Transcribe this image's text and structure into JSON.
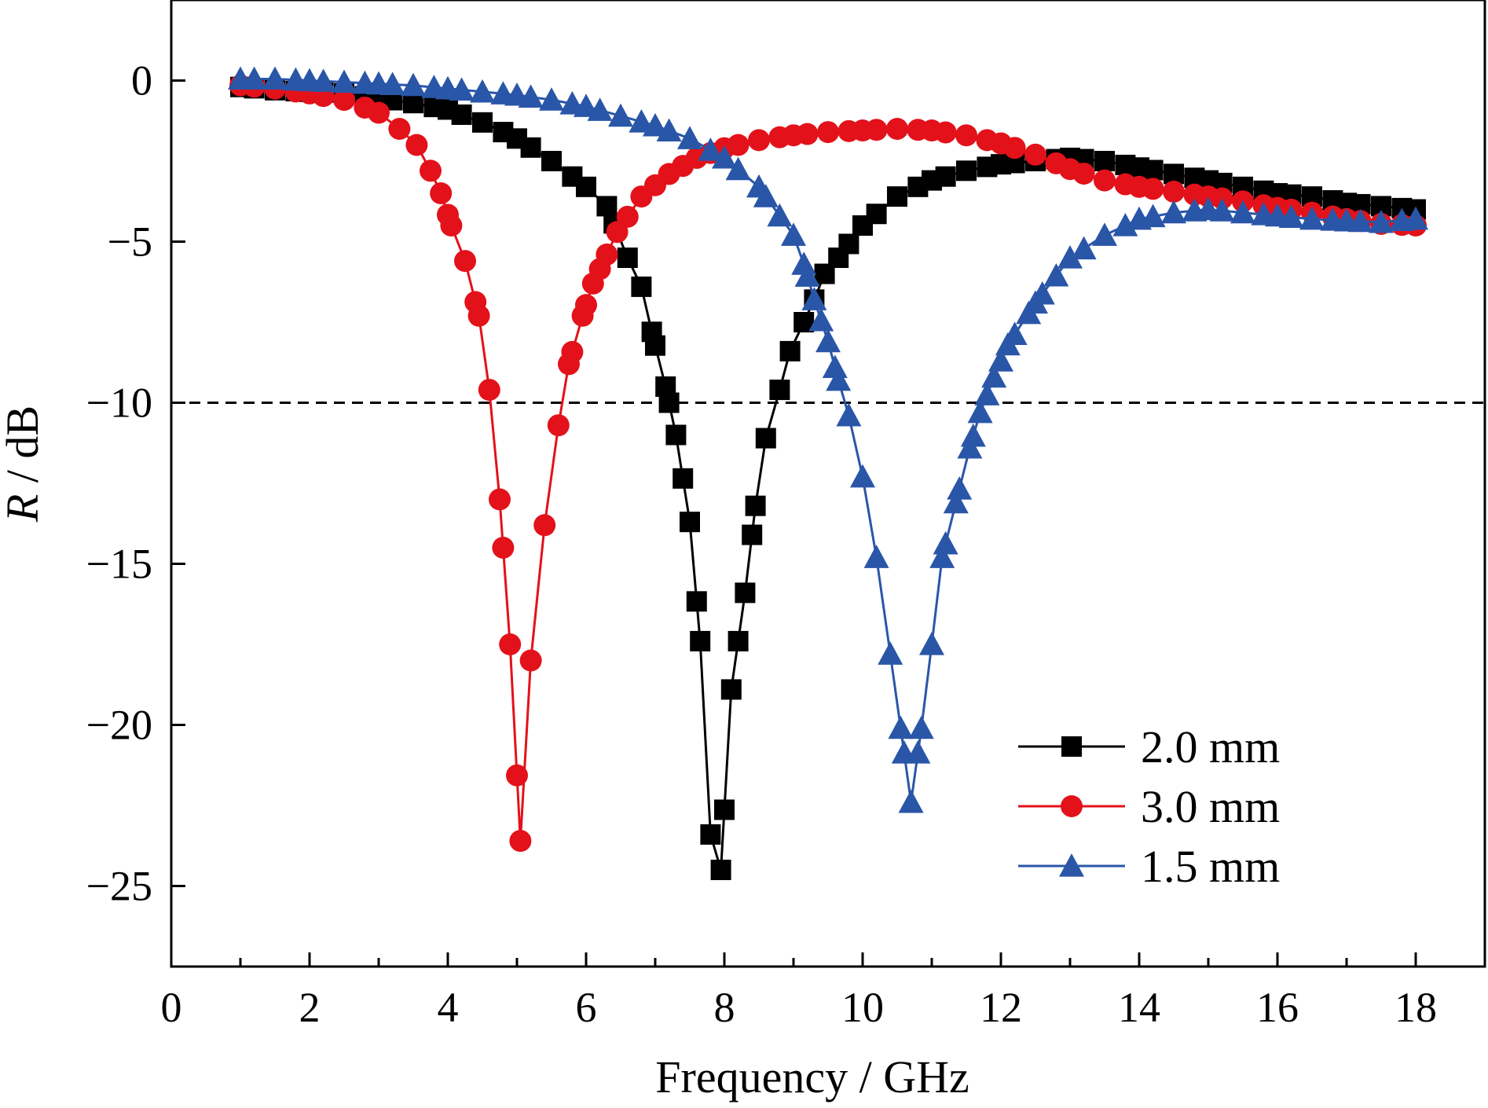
{
  "chart_data": {
    "type": "line",
    "xlabel": "Frequency / GHz",
    "ylabel_italic": "R",
    "ylabel_unit": " / dB",
    "xlim": [
      0,
      19
    ],
    "ylim": [
      -27.5,
      2.5
    ],
    "xticks": [
      0,
      2,
      4,
      6,
      8,
      10,
      12,
      14,
      16,
      18
    ],
    "xtick_labels": [
      "0",
      "2",
      "4",
      "6",
      "8",
      "10",
      "12",
      "14",
      "16",
      "18"
    ],
    "yticks": [
      0,
      -5,
      -10,
      -15,
      -20,
      -25
    ],
    "ytick_labels": [
      "0",
      "−5",
      "−10",
      "−15",
      "−20",
      "−25"
    ],
    "reference_line": {
      "y": -10,
      "style": "dashed"
    },
    "legend_position": "bottom-right",
    "series": [
      {
        "name": "2.0 mm",
        "color": "#000000",
        "marker": "square",
        "points": [
          [
            1.0,
            -0.2
          ],
          [
            1.5,
            -0.3
          ],
          [
            2.0,
            -0.35
          ],
          [
            2.5,
            -0.4
          ],
          [
            3.0,
            -0.55
          ],
          [
            3.5,
            -0.7
          ],
          [
            4.0,
            -0.9
          ],
          [
            4.5,
            -1.3
          ],
          [
            5.0,
            -1.8
          ],
          [
            5.5,
            -2.5
          ],
          [
            6.0,
            -3.3
          ],
          [
            6.3,
            -3.9
          ],
          [
            6.6,
            -5.5
          ],
          [
            6.8,
            -6.4
          ],
          [
            6.95,
            -7.8
          ],
          [
            7.15,
            -9.5
          ],
          [
            7.3,
            -11.0
          ],
          [
            7.5,
            -13.7
          ],
          [
            7.65,
            -17.4
          ],
          [
            7.8,
            -23.4
          ],
          [
            7.95,
            -24.5
          ],
          [
            8.1,
            -18.9
          ],
          [
            8.3,
            -15.9
          ],
          [
            8.45,
            -13.2
          ],
          [
            8.6,
            -11.1
          ],
          [
            8.8,
            -9.6
          ],
          [
            8.95,
            -8.4
          ],
          [
            9.15,
            -7.5
          ],
          [
            9.3,
            -6.8
          ],
          [
            9.45,
            -6.0
          ],
          [
            9.65,
            -5.5
          ],
          [
            10.0,
            -4.5
          ],
          [
            10.5,
            -3.6
          ],
          [
            11.0,
            -3.1
          ],
          [
            11.5,
            -2.8
          ],
          [
            12.0,
            -2.6
          ],
          [
            12.5,
            -2.5
          ],
          [
            13.0,
            -2.4
          ],
          [
            13.5,
            -2.5
          ],
          [
            14.0,
            -2.7
          ],
          [
            14.5,
            -2.9
          ],
          [
            15.0,
            -3.1
          ],
          [
            15.5,
            -3.3
          ],
          [
            16.0,
            -3.5
          ],
          [
            16.5,
            -3.6
          ],
          [
            17.0,
            -3.8
          ],
          [
            17.5,
            -3.9
          ],
          [
            18.0,
            -4.0
          ]
        ]
      },
      {
        "name": "3.0 mm",
        "color": "#e3111a",
        "marker": "circle",
        "points": [
          [
            1.0,
            -0.15
          ],
          [
            1.5,
            -0.25
          ],
          [
            2.0,
            -0.4
          ],
          [
            2.5,
            -0.6
          ],
          [
            3.0,
            -1.0
          ],
          [
            3.3,
            -1.5
          ],
          [
            3.55,
            -2.0
          ],
          [
            3.75,
            -2.8
          ],
          [
            3.9,
            -3.5
          ],
          [
            4.05,
            -4.5
          ],
          [
            4.25,
            -5.6
          ],
          [
            4.45,
            -7.3
          ],
          [
            4.6,
            -9.6
          ],
          [
            4.75,
            -13.0
          ],
          [
            4.9,
            -17.5
          ],
          [
            5.05,
            -23.6
          ],
          [
            5.2,
            -18.0
          ],
          [
            5.4,
            -13.8
          ],
          [
            5.6,
            -10.7
          ],
          [
            5.75,
            -8.8
          ],
          [
            5.95,
            -7.3
          ],
          [
            6.1,
            -6.3
          ],
          [
            6.3,
            -5.4
          ],
          [
            6.45,
            -4.7
          ],
          [
            6.8,
            -3.6
          ],
          [
            7.2,
            -2.9
          ],
          [
            7.6,
            -2.4
          ],
          [
            8.0,
            -2.1
          ],
          [
            8.5,
            -1.85
          ],
          [
            9.0,
            -1.7
          ],
          [
            9.5,
            -1.6
          ],
          [
            10.0,
            -1.55
          ],
          [
            10.5,
            -1.5
          ],
          [
            11.0,
            -1.55
          ],
          [
            11.5,
            -1.7
          ],
          [
            12.0,
            -1.95
          ],
          [
            12.5,
            -2.3
          ],
          [
            13.0,
            -2.75
          ],
          [
            13.5,
            -3.1
          ],
          [
            14.0,
            -3.3
          ],
          [
            14.5,
            -3.45
          ],
          [
            15.0,
            -3.6
          ],
          [
            15.5,
            -3.75
          ],
          [
            16.0,
            -3.95
          ],
          [
            16.5,
            -4.1
          ],
          [
            17.0,
            -4.3
          ],
          [
            17.5,
            -4.45
          ],
          [
            18.0,
            -4.5
          ]
        ]
      },
      {
        "name": "1.5 mm",
        "color": "#2a56a8",
        "marker": "triangle",
        "points": [
          [
            1.0,
            0.05
          ],
          [
            1.5,
            0.05
          ],
          [
            2.0,
            0.0
          ],
          [
            2.5,
            -0.05
          ],
          [
            3.0,
            -0.1
          ],
          [
            3.5,
            -0.15
          ],
          [
            4.0,
            -0.25
          ],
          [
            4.5,
            -0.35
          ],
          [
            5.0,
            -0.45
          ],
          [
            5.5,
            -0.6
          ],
          [
            6.0,
            -0.8
          ],
          [
            6.5,
            -1.1
          ],
          [
            7.0,
            -1.4
          ],
          [
            7.5,
            -1.8
          ],
          [
            8.0,
            -2.4
          ],
          [
            8.5,
            -3.3
          ],
          [
            9.0,
            -4.8
          ],
          [
            9.15,
            -5.7
          ],
          [
            9.3,
            -6.8
          ],
          [
            9.5,
            -8.1
          ],
          [
            9.65,
            -9.3
          ],
          [
            9.8,
            -10.4
          ],
          [
            10.0,
            -12.3
          ],
          [
            10.2,
            -14.8
          ],
          [
            10.4,
            -17.8
          ],
          [
            10.55,
            -20.1
          ],
          [
            10.7,
            -22.4
          ],
          [
            10.85,
            -20.1
          ],
          [
            11.0,
            -17.5
          ],
          [
            11.15,
            -14.8
          ],
          [
            11.35,
            -13.1
          ],
          [
            11.55,
            -11.4
          ],
          [
            11.7,
            -10.3
          ],
          [
            11.9,
            -9.2
          ],
          [
            12.1,
            -8.2
          ],
          [
            12.5,
            -6.9
          ],
          [
            13.0,
            -5.5
          ],
          [
            13.5,
            -4.8
          ],
          [
            14.0,
            -4.3
          ],
          [
            14.5,
            -4.1
          ],
          [
            15.0,
            -4.0
          ],
          [
            15.5,
            -4.1
          ],
          [
            16.0,
            -4.2
          ],
          [
            16.5,
            -4.3
          ],
          [
            17.0,
            -4.35
          ],
          [
            17.5,
            -4.4
          ],
          [
            18.0,
            -4.3
          ]
        ]
      }
    ]
  }
}
